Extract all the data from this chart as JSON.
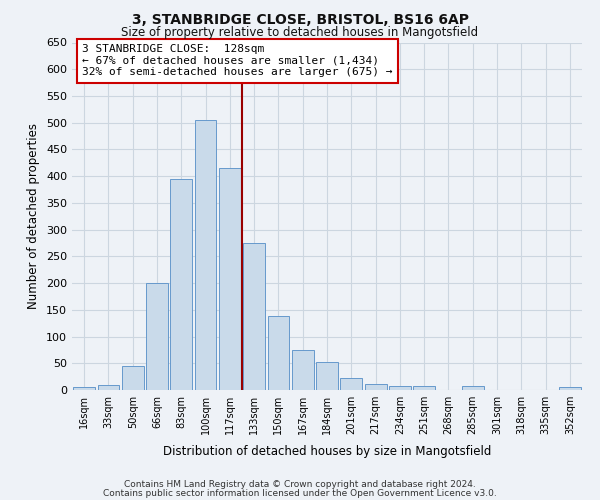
{
  "title1": "3, STANBRIDGE CLOSE, BRISTOL, BS16 6AP",
  "title2": "Size of property relative to detached houses in Mangotsfield",
  "xlabel": "Distribution of detached houses by size in Mangotsfield",
  "ylabel": "Number of detached properties",
  "bar_labels": [
    "16sqm",
    "33sqm",
    "50sqm",
    "66sqm",
    "83sqm",
    "100sqm",
    "117sqm",
    "133sqm",
    "150sqm",
    "167sqm",
    "184sqm",
    "201sqm",
    "217sqm",
    "234sqm",
    "251sqm",
    "268sqm",
    "285sqm",
    "301sqm",
    "318sqm",
    "335sqm",
    "352sqm"
  ],
  "bar_values": [
    5,
    10,
    45,
    200,
    395,
    505,
    415,
    275,
    138,
    75,
    52,
    23,
    12,
    7,
    8,
    0,
    7,
    0,
    0,
    0,
    5
  ],
  "bar_color": "#c9daea",
  "bar_edge_color": "#6699cc",
  "vline_color": "#990000",
  "annotation_line1": "3 STANBRIDGE CLOSE:  128sqm",
  "annotation_line2": "← 67% of detached houses are smaller (1,434)",
  "annotation_line3": "32% of semi-detached houses are larger (675) →",
  "annotation_box_color": "#ffffff",
  "annotation_box_edge": "#cc0000",
  "ylim": [
    0,
    650
  ],
  "yticks": [
    0,
    50,
    100,
    150,
    200,
    250,
    300,
    350,
    400,
    450,
    500,
    550,
    600,
    650
  ],
  "footer1": "Contains HM Land Registry data © Crown copyright and database right 2024.",
  "footer2": "Contains public sector information licensed under the Open Government Licence v3.0.",
  "bg_color": "#eef2f7",
  "grid_color": "#ccd6e0"
}
